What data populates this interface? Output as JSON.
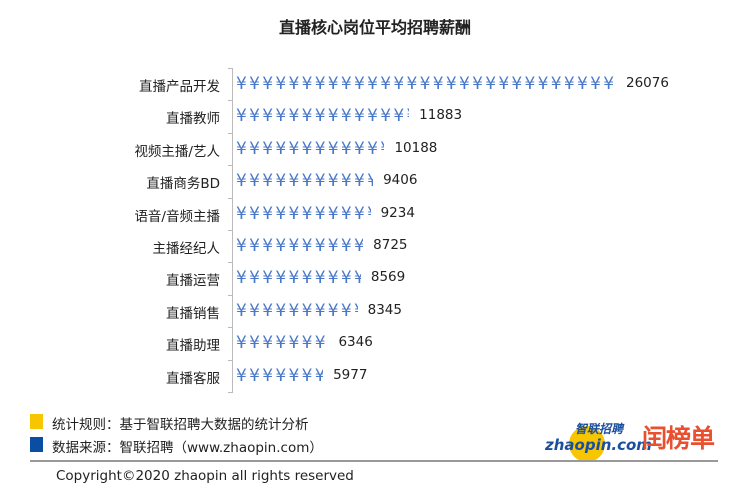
{
  "chart_data": {
    "type": "bar",
    "orientation": "horizontal",
    "title": "直播核心岗位平均招聘薪酬",
    "categories": [
      "直播产品开发",
      "直播教师",
      "视频主播/艺人",
      "直播商务BD",
      "语音/音频主播",
      "主播经纪人",
      "直播运营",
      "直播销售",
      "直播助理",
      "直播客服"
    ],
    "values": [
      26076,
      11883,
      10188,
      9406,
      9234,
      8725,
      8569,
      8345,
      6346,
      5977
    ],
    "bar_symbol": "¥",
    "bar_color": "#4a78c9",
    "grid": false,
    "xlim": [
      0,
      26076
    ]
  },
  "legend": [
    {
      "color": "#f7c600",
      "text": "统计规则：基于智联招聘大数据的统计分析"
    },
    {
      "color": "#0a4ea3",
      "text": "数据来源：智联招聘（www.zhaopin.com）"
    }
  ],
  "logos": {
    "zhaopin_cn": "智联招聘",
    "zhaopin_en": "zhaopin.com",
    "brand2": "闰榜单"
  },
  "copyright": "Copyright©2020 zhaopin all rights reserved"
}
